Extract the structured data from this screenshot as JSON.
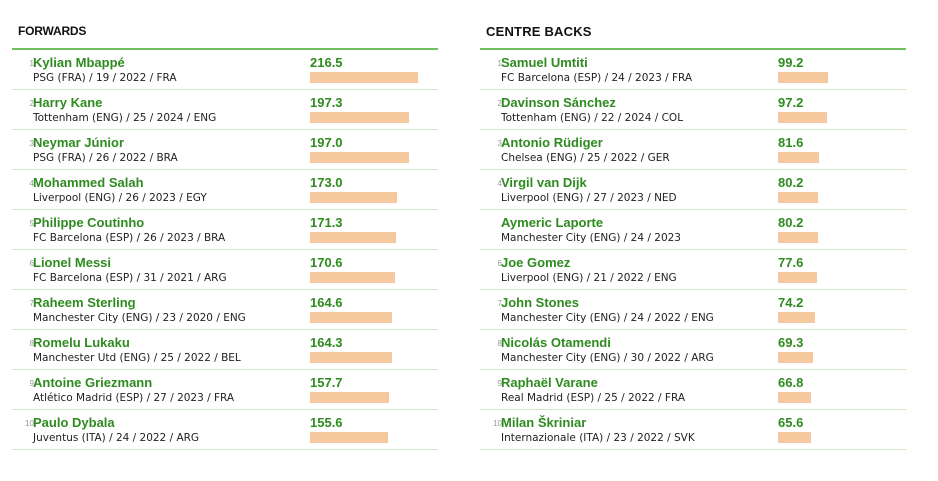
{
  "chart_data": [
    {
      "type": "bar",
      "title": "FORWARDS",
      "bar_color": "#f6c89d",
      "categories": [
        "Kylian Mbappé",
        "Harry Kane",
        "Neymar Júnior",
        "Mohammed Salah",
        "Philippe Coutinho",
        "Lionel Messi",
        "Raheem Sterling",
        "Romelu Lukaku",
        "Antoine Griezmann",
        "Paulo Dybala"
      ],
      "values": [
        216.5,
        197.3,
        197.0,
        173.0,
        171.3,
        170.6,
        164.6,
        164.3,
        157.7,
        155.6
      ],
      "rows": [
        {
          "rank": "1",
          "name": "Kylian Mbappé",
          "detail": "PSG (FRA) / 19 / 2022 / FRA",
          "value": "216.5"
        },
        {
          "rank": "2",
          "name": "Harry Kane",
          "detail": "Tottenham (ENG) / 25 / 2024 / ENG",
          "value": "197.3"
        },
        {
          "rank": "3",
          "name": "Neymar Júnior",
          "detail": "PSG (FRA) / 26 / 2022 / BRA",
          "value": "197.0"
        },
        {
          "rank": "4",
          "name": "Mohammed Salah",
          "detail": "Liverpool (ENG) / 26 / 2023 / EGY",
          "value": "173.0"
        },
        {
          "rank": "5",
          "name": "Philippe Coutinho",
          "detail": "FC Barcelona (ESP) / 26 / 2023 / BRA",
          "value": "171.3"
        },
        {
          "rank": "6",
          "name": "Lionel Messi",
          "detail": "FC Barcelona (ESP) / 31 / 2021 / ARG",
          "value": "170.6"
        },
        {
          "rank": "7",
          "name": "Raheem Sterling",
          "detail": "Manchester City (ENG) / 23 / 2020 / ENG",
          "value": "164.6"
        },
        {
          "rank": "8",
          "name": "Romelu Lukaku",
          "detail": "Manchester Utd (ENG) / 25 / 2022 / BEL",
          "value": "164.3"
        },
        {
          "rank": "9",
          "name": "Antoine Griezmann",
          "detail": "Atlético Madrid (ESP) / 27 / 2023 / FRA",
          "value": "157.7"
        },
        {
          "rank": "10",
          "name": "Paulo Dybala",
          "detail": "Juventus (ITA) / 24 / 2022 / ARG",
          "value": "155.6"
        }
      ]
    },
    {
      "type": "bar",
      "title": "CENTRE BACKS",
      "bar_color": "#f6c89d",
      "categories": [
        "Samuel Umtiti",
        "Davinson Sánchez",
        "Antonio Rüdiger",
        "Virgil van Dijk",
        "Aymeric Laporte",
        "Joe Gomez",
        "John Stones",
        "Nicolás Otamendi",
        "Raphaël Varane",
        "Milan Škriniar"
      ],
      "values": [
        99.2,
        97.2,
        81.6,
        80.2,
        80.2,
        77.6,
        74.2,
        69.3,
        66.8,
        65.6
      ],
      "rows": [
        {
          "rank": "1",
          "name": "Samuel Umtiti",
          "detail": "FC Barcelona (ESP) / 24 / 2023 / FRA",
          "value": "99.2"
        },
        {
          "rank": "2",
          "name": "Davinson Sánchez",
          "detail": "Tottenham (ENG) / 22 / 2024 / COL",
          "value": "97.2"
        },
        {
          "rank": "3",
          "name": "Antonio Rüdiger",
          "detail": "Chelsea (ENG) / 25 / 2022 / GER",
          "value": "81.6"
        },
        {
          "rank": "4",
          "name": "Virgil van Dijk",
          "detail": "Liverpool (ENG) / 27 / 2023 / NED",
          "value": "80.2"
        },
        {
          "rank": ".",
          "name": "Aymeric Laporte",
          "detail": "Manchester City (ENG) / 24 / 2023",
          "value": "80.2"
        },
        {
          "rank": "6",
          "name": "Joe Gomez",
          "detail": "Liverpool (ENG) / 21 / 2022 / ENG",
          "value": "77.6"
        },
        {
          "rank": "7",
          "name": "John Stones",
          "detail": "Manchester City (ENG) / 24 / 2022 / ENG",
          "value": "74.2"
        },
        {
          "rank": "8",
          "name": "Nicolás Otamendi",
          "detail": "Manchester City (ENG) / 30 / 2022 / ARG",
          "value": "69.3"
        },
        {
          "rank": "9",
          "name": "Raphaël Varane",
          "detail": "Real Madrid (ESP) / 25 / 2022 / FRA",
          "value": "66.8"
        },
        {
          "rank": "10",
          "name": "Milan Škriniar",
          "detail": "Internazionale (ITA) / 23 / 2022 / SVK",
          "value": "65.6"
        }
      ]
    }
  ]
}
